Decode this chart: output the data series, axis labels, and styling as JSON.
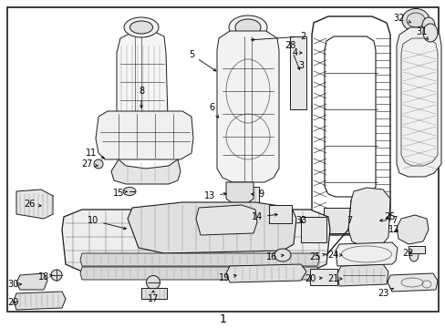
{
  "bg": "#ffffff",
  "border": "#000000",
  "fig_w": 4.89,
  "fig_h": 3.6,
  "dpi": 100,
  "bottom_label": "1",
  "label_fs": 7.5,
  "anno_fs": 7.0
}
